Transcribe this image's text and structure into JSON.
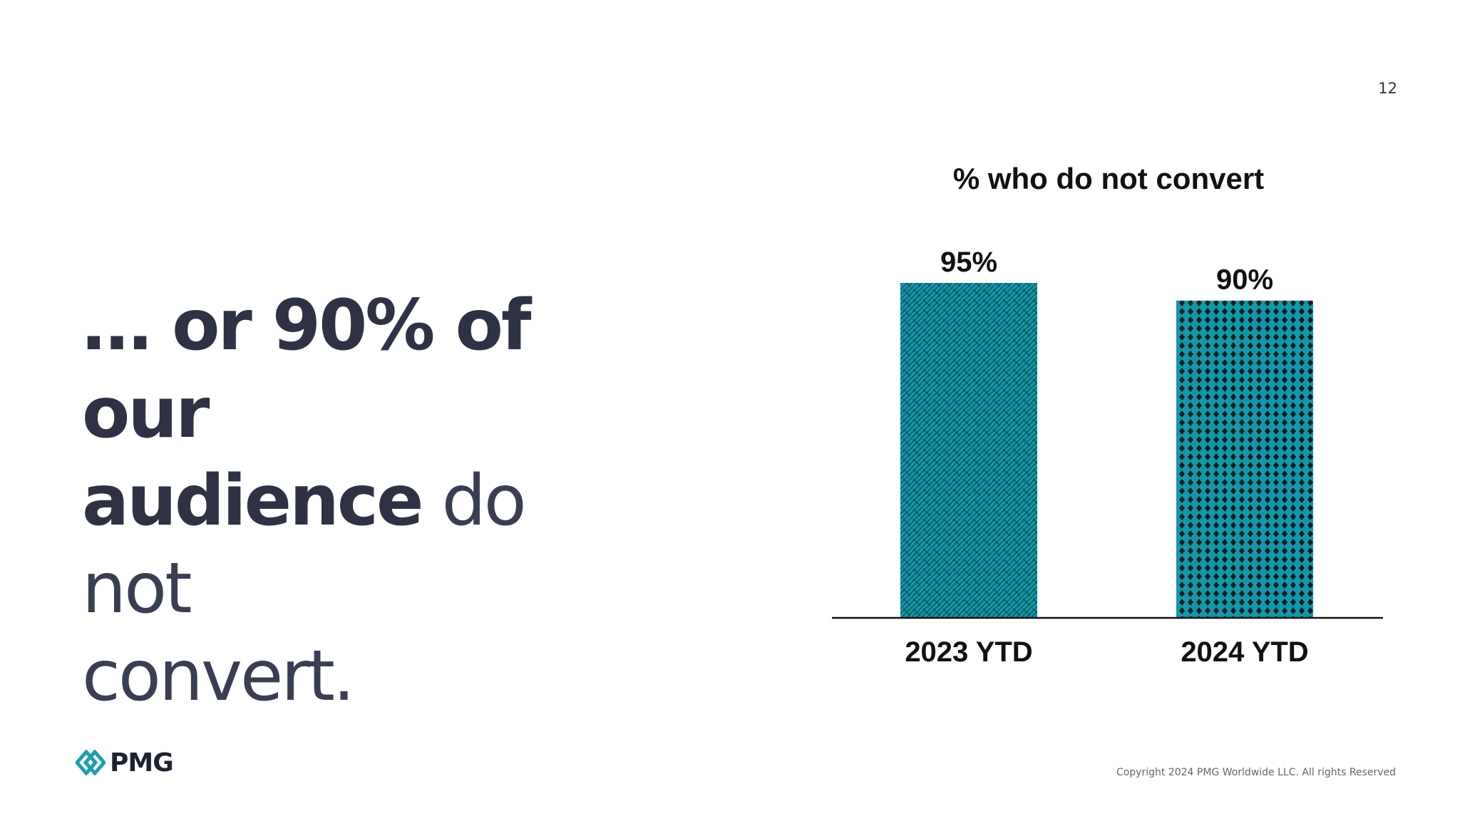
{
  "slide": {
    "page_number": "12",
    "headline": {
      "part1": "… or 90% of our",
      "part2_bold": "audience",
      "part2_light": " do not",
      "part3": "convert."
    }
  },
  "brand": {
    "name": "PMG",
    "icon": "pmg-logo-icon",
    "accent_color": "#1a9fae"
  },
  "footer": {
    "copyright": "Copyright 2024 PMG Worldwide LLC. All rights Reserved"
  },
  "chart_data": {
    "type": "bar",
    "title": "% who do not convert",
    "categories": [
      "2023 YTD",
      "2024 YTD"
    ],
    "values": [
      95,
      90
    ],
    "data_labels": [
      "95%",
      "90%"
    ],
    "patterns": [
      "weave",
      "dots"
    ],
    "bar_color": "#1597a8",
    "ylim": [
      0,
      100
    ],
    "grid": false
  }
}
